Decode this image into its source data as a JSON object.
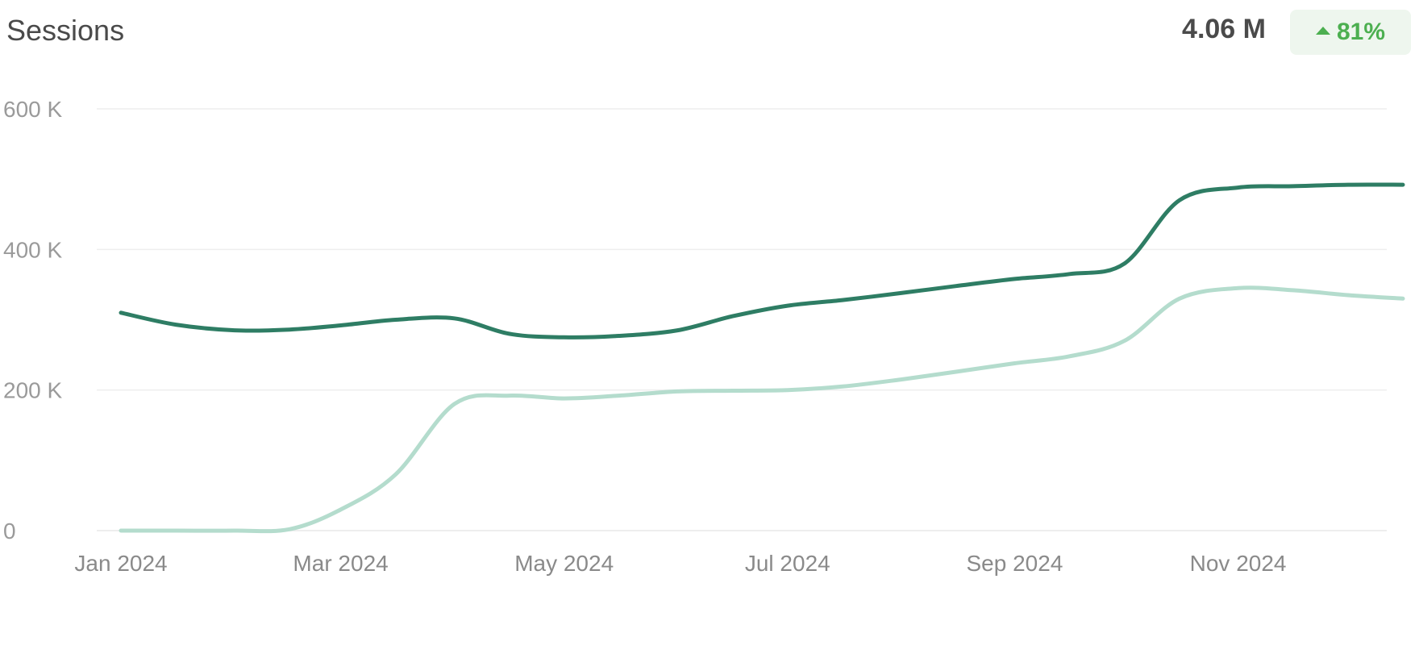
{
  "header": {
    "title": "Sessions",
    "total": "4.06 M",
    "change": "81%"
  },
  "colors": {
    "current": "#2e7d64",
    "previous": "#b4dccd",
    "grid": "#eeeeee",
    "badge_bg": "#eef6ee",
    "badge_text": "#4caf50"
  },
  "chart_data": {
    "type": "line",
    "title": "Sessions",
    "xlabel": "",
    "ylabel": "",
    "ylim": [
      0,
      600000
    ],
    "y_ticks": [
      0,
      200000,
      400000,
      600000
    ],
    "y_tick_labels": [
      "0",
      "200 K",
      "400 K",
      "600 K"
    ],
    "x": [
      "2024-01-01",
      "2024-01-16",
      "2024-02-01",
      "2024-02-16",
      "2024-03-01",
      "2024-03-16",
      "2024-04-01",
      "2024-04-16",
      "2024-05-01",
      "2024-05-16",
      "2024-06-01",
      "2024-06-16",
      "2024-07-01",
      "2024-07-16",
      "2024-08-01",
      "2024-08-16",
      "2024-09-01",
      "2024-09-16",
      "2024-10-01",
      "2024-10-16",
      "2024-11-01",
      "2024-11-16",
      "2024-12-01",
      "2024-12-16"
    ],
    "x_ticks": [
      "2024-01-01",
      "2024-03-01",
      "2024-05-01",
      "2024-07-01",
      "2024-09-01",
      "2024-11-01"
    ],
    "x_tick_labels": [
      "Jan 2024",
      "Mar 2024",
      "May 2024",
      "Jul 2024",
      "Sep 2024",
      "Nov 2024"
    ],
    "grid": true,
    "series": [
      {
        "values": [
          310000,
          293000,
          285000,
          286000,
          292000,
          300000,
          302000,
          280000,
          275000,
          277000,
          285000,
          305000,
          320000,
          328000,
          338000,
          348000,
          358000,
          365000,
          380000,
          470000,
          488000,
          490000,
          492000,
          492000
        ]
      },
      {
        "values": [
          0,
          0,
          0,
          2000,
          30000,
          80000,
          180000,
          192000,
          188000,
          192000,
          198000,
          199000,
          200000,
          205000,
          215000,
          226000,
          238000,
          248000,
          270000,
          330000,
          345000,
          342000,
          335000,
          330000
        ]
      }
    ]
  }
}
